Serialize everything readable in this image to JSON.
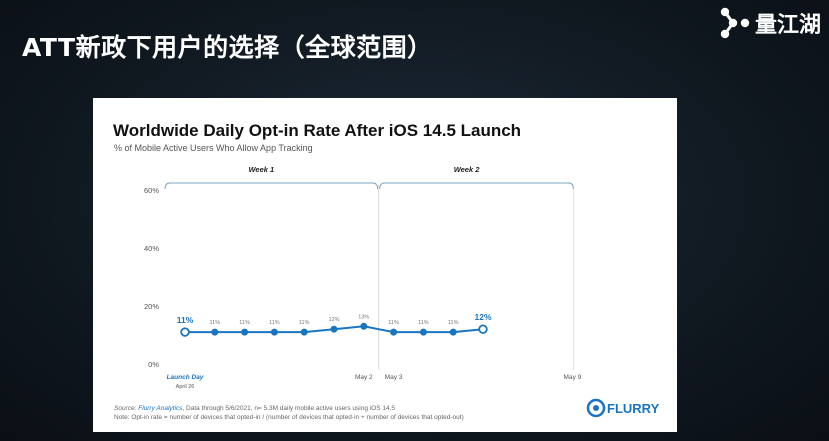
{
  "slide": {
    "title": "ATT新政下用户的选择（全球范围）",
    "brand": {
      "name": "量江湖",
      "icon": "brand-logo-icon"
    }
  },
  "chart_data": {
    "type": "line",
    "title": "Worldwide Daily Opt-in Rate After iOS 14.5 Launch",
    "subtitle": "% of Mobile Active Users Who Allow App Tracking",
    "xlabel": "",
    "ylabel": "",
    "ylim": [
      0,
      60
    ],
    "y_ticks": [
      "0%",
      "20%",
      "40%",
      "60%"
    ],
    "grid": false,
    "color": "#1a75c0",
    "x_tick_labels": [
      {
        "index": 0,
        "lines": [
          "Launch Day",
          "April 26"
        ],
        "highlight": true
      },
      {
        "index": 6,
        "lines": [
          "May 2"
        ],
        "highlight": false
      },
      {
        "index": 7,
        "lines": [
          "May 3"
        ],
        "highlight": false
      },
      {
        "index": 13,
        "lines": [
          "May 9"
        ],
        "highlight": false
      }
    ],
    "weeks": [
      {
        "label": "Week 1",
        "start": 0,
        "end": 6.5
      },
      {
        "label": "Week 2",
        "start": 6.5,
        "end": 13
      }
    ],
    "series": [
      {
        "values": [
          11,
          11,
          11,
          11,
          11,
          12,
          13,
          11,
          11,
          11,
          12
        ],
        "labels": [
          "11%",
          "11%",
          "11%",
          "11%",
          "11%",
          "12%",
          "13%",
          "11%",
          "11%",
          "11%",
          "12%"
        ],
        "emphasized": [
          0,
          10
        ]
      }
    ],
    "source_label": "Source: ",
    "source_brand": "Flurry Analytics",
    "source_text": ", Data through 5/6/2021, n= 5.3M daily mobile active users using iOS 14.5",
    "note": "Note: Opt-in rate = number of devices that opted-in / (number of devices that opted-in + number of devices that opted-out)",
    "logo_text": "FLURRY"
  }
}
